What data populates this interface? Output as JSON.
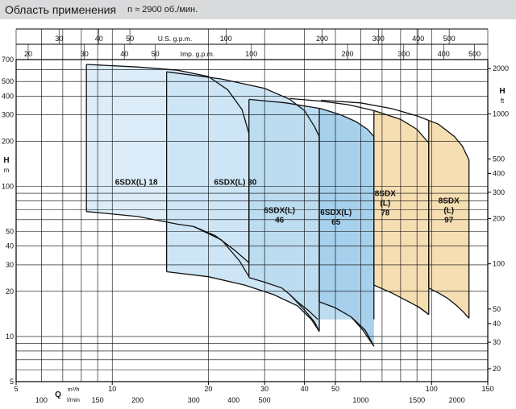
{
  "header": {
    "title": "Область применения",
    "subtitle": "n ≈ 2900 об./мин."
  },
  "chart_data": {
    "type": "area",
    "x_scale": "log",
    "y_scale": "log",
    "xlim": [
      5,
      150
    ],
    "ylim": [
      5,
      700
    ],
    "xlabel": "Q",
    "x_unit_main": "m³/h",
    "x_unit_lmin": "l/min",
    "ylabel_left": "H",
    "ylabel_left_unit": "m",
    "ylabel_right": "H",
    "ylabel_right_unit": "ft",
    "top_axis_usgpm_label": "U.S. g.p.m.",
    "top_axis_impgpm_label": "Imp. g.p.m.",
    "axis_ticks": {
      "m3h": [
        5,
        10,
        20,
        30,
        40,
        50,
        100,
        150
      ],
      "lmin": [
        100,
        150,
        200,
        300,
        400,
        500,
        1000,
        1500,
        2000
      ],
      "usgpm": [
        30,
        40,
        50,
        100,
        200,
        300,
        400,
        500
      ],
      "impgpm": [
        20,
        30,
        40,
        50,
        100,
        200,
        300,
        400,
        500
      ],
      "m": [
        5,
        10,
        20,
        30,
        40,
        50,
        100,
        200,
        300,
        400,
        500,
        700
      ],
      "ft": [
        20,
        30,
        40,
        50,
        100,
        200,
        300,
        400,
        500,
        1000,
        2000
      ]
    },
    "series": [
      {
        "name": "6SDX(L) 18",
        "label_lines": [
          "6SDX(L) 18"
        ],
        "color": "#dcedf9",
        "q_min": 8.3,
        "q_max": 26.8,
        "top": [
          [
            8.3,
            650
          ],
          [
            12,
            625
          ],
          [
            16,
            595
          ],
          [
            20,
            540
          ],
          [
            23,
            440
          ],
          [
            25.5,
            325
          ],
          [
            26.8,
            225
          ]
        ],
        "bottom": [
          [
            8.3,
            68
          ],
          [
            12,
            63
          ],
          [
            16,
            56
          ],
          [
            18,
            54
          ],
          [
            21,
            47
          ],
          [
            24,
            38
          ],
          [
            26.8,
            31
          ]
        ],
        "label_xy": [
          11.9,
          108
        ]
      },
      {
        "name": "6SDX(L) 30",
        "label_lines": [
          "6SDX(L) 30"
        ],
        "color": "#cde5f5",
        "q_min": 14.8,
        "q_max": 44.5,
        "top": [
          [
            14.8,
            580
          ],
          [
            22,
            520
          ],
          [
            30,
            450
          ],
          [
            36,
            380
          ],
          [
            40,
            320
          ],
          [
            43,
            250
          ],
          [
            44.5,
            215
          ]
        ],
        "bottom": [
          [
            14.8,
            27
          ],
          [
            20,
            25
          ],
          [
            26,
            22
          ],
          [
            32,
            19
          ],
          [
            38,
            16
          ],
          [
            42,
            13
          ],
          [
            44.5,
            10.8
          ]
        ],
        "label_xy": [
          24.3,
          108
        ]
      },
      {
        "name": "6SDX(L) 46",
        "label_lines": [
          "6SDX(L)",
          "46"
        ],
        "color": "#bcdcf0",
        "q_min": 26.8,
        "q_max": 66,
        "top": [
          [
            26.8,
            380
          ],
          [
            35,
            360
          ],
          [
            45,
            330
          ],
          [
            52,
            300
          ],
          [
            58,
            270
          ],
          [
            63,
            240
          ],
          [
            66,
            215
          ]
        ],
        "bottom": [
          [
            26.8,
            24.7
          ],
          [
            30,
            23
          ],
          [
            34,
            21
          ],
          [
            36,
            19
          ],
          [
            38,
            17
          ],
          [
            41,
            15
          ],
          [
            44,
            13
          ]
        ],
        "label_xy": [
          33.4,
          65
        ]
      },
      {
        "name": "6SDX(L) 65",
        "label_lines": [
          "6SDX(L)",
          "65"
        ],
        "color": "#a7d0ec",
        "q_min": 44.5,
        "q_max": 66,
        "top": [
          [
            44.5,
            258
          ]
        ],
        "bottom": [
          [
            44.5,
            17
          ],
          [
            50,
            15.5
          ],
          [
            56,
            13.5
          ],
          [
            61,
            11
          ],
          [
            66,
            8.6
          ]
        ],
        "label_xy": [
          50.2,
          63
        ]
      },
      {
        "name": "8SDX(L) 78",
        "label_lines": [
          "8SDX",
          "(L)",
          "78"
        ],
        "color": "#f6deb3",
        "q_min": 66,
        "q_max": 98,
        "top": [
          [
            36,
            385
          ],
          [
            45,
            370
          ],
          [
            55,
            350
          ],
          [
            66,
            320
          ],
          [
            80,
            280
          ],
          [
            90,
            240
          ],
          [
            98,
            195
          ]
        ],
        "bottom": [
          [
            66,
            22
          ],
          [
            75,
            19.5
          ],
          [
            85,
            17
          ],
          [
            92,
            15.5
          ],
          [
            98,
            14
          ]
        ],
        "label_xy": [
          71.6,
          78
        ]
      },
      {
        "name": "8SDX(L) 97",
        "label_lines": [
          "8SDX",
          "(L)",
          "97"
        ],
        "color": "#f6deb3",
        "q_min": 98,
        "q_max": 131,
        "top": [
          [
            45,
            375
          ],
          [
            60,
            360
          ],
          [
            75,
            330
          ],
          [
            90,
            295
          ],
          [
            105,
            260
          ],
          [
            118,
            215
          ],
          [
            125,
            185
          ],
          [
            131,
            150
          ]
        ],
        "bottom": [
          [
            98,
            21
          ],
          [
            105,
            19.5
          ],
          [
            112,
            18
          ],
          [
            120,
            16
          ],
          [
            126,
            14.5
          ],
          [
            131,
            13.2
          ]
        ],
        "label_xy": [
          113.3,
          70
        ]
      }
    ]
  }
}
